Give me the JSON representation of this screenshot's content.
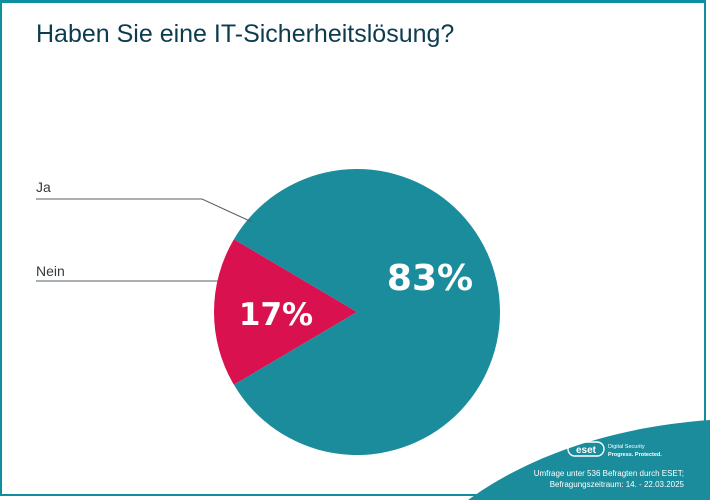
{
  "title": "Haben Sie eine IT-Sicherheitslösung?",
  "chart_data": {
    "type": "pie",
    "title": "Haben Sie eine IT-Sicherheitslösung?",
    "slices": [
      {
        "label": "Ja",
        "value": 83,
        "display": "83%",
        "color": "#1a8c9c"
      },
      {
        "label": "Nein",
        "value": 17,
        "display": "17%",
        "color": "#d9114f"
      }
    ],
    "legend": "left"
  },
  "brand": {
    "logo_text": "eset",
    "tagline_1": "Digital Security",
    "tagline_2": "Progress. Protected."
  },
  "footer": {
    "line1": "Umfrage unter 536 Befragten durch ESET;",
    "line2": "Befragungszeitraum: 14. - 22.03.2025"
  },
  "colors": {
    "frame": "#0e8fa0",
    "title": "#0d3c4f",
    "footer_bg": "#1a8c9c"
  }
}
